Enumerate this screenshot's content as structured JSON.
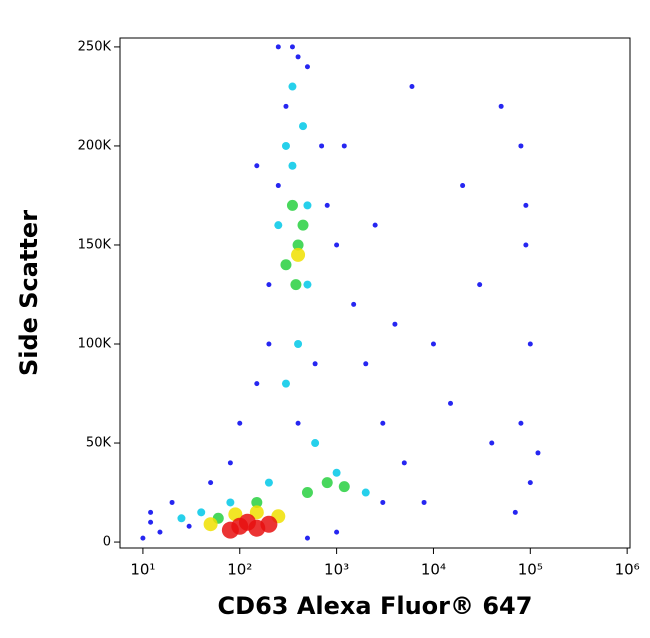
{
  "chart_data": {
    "type": "scatter",
    "x_label": "CD63 Alexa Fluor® 647",
    "y_label": "Side Scatter",
    "xlog": true,
    "xlim": [
      5.8,
      1070000
    ],
    "xticks": [
      {
        "value": 10,
        "label": "10¹"
      },
      {
        "value": 100,
        "label": "10²"
      },
      {
        "value": 1000,
        "label": "10³"
      },
      {
        "value": 10000,
        "label": "10⁴"
      },
      {
        "value": 100000,
        "label": "10⁵"
      },
      {
        "value": 1000000,
        "label": "10⁶"
      }
    ],
    "ylim": [
      -3000,
      254500
    ],
    "yticks": [
      0,
      {
        "value": 50000,
        "label": "50K"
      },
      {
        "value": 100000,
        "label": "100K"
      },
      {
        "value": 150000,
        "label": "150K"
      },
      {
        "value": 200000,
        "label": "200K"
      },
      {
        "value": 250000,
        "label": "250K"
      }
    ],
    "series": [
      {
        "color": "#0000ee",
        "x": [
          20,
          30,
          15,
          12,
          50,
          80,
          100,
          150,
          200,
          250,
          300,
          350,
          500,
          700,
          1000,
          1500,
          2000,
          3000,
          5000,
          8000,
          10000,
          20000,
          30000,
          50000,
          80000,
          90000,
          100000,
          80000,
          100000,
          70000,
          120000,
          90000,
          200,
          150,
          400,
          600,
          800,
          1200,
          2500,
          4000,
          6000,
          15000,
          40000,
          3000,
          1000,
          500,
          10,
          12,
          400,
          250
        ],
        "values": [
          20000,
          8000,
          5000,
          15000,
          30000,
          40000,
          60000,
          80000,
          100000,
          180000,
          220000,
          250000,
          240000,
          200000,
          150000,
          120000,
          90000,
          60000,
          40000,
          20000,
          100000,
          180000,
          130000,
          220000,
          200000,
          150000,
          100000,
          60000,
          30000,
          15000,
          45000,
          170000,
          130000,
          190000,
          60000,
          90000,
          170000,
          200000,
          160000,
          110000,
          230000,
          70000,
          50000,
          20000,
          5000,
          2000,
          2000,
          10000,
          245000,
          250000
        ]
      },
      {
        "color": "#00c8e8",
        "x": [
          300,
          350,
          450,
          250,
          500,
          400,
          300,
          600,
          1000,
          2000,
          200,
          80,
          40,
          25,
          500,
          350
        ],
        "values": [
          200000,
          190000,
          210000,
          160000,
          130000,
          100000,
          80000,
          50000,
          35000,
          25000,
          30000,
          20000,
          15000,
          12000,
          170000,
          230000
        ]
      },
      {
        "color": "#28d040",
        "x": [
          350,
          400,
          450,
          380,
          300,
          800,
          1200,
          500,
          150,
          60
        ],
        "values": [
          170000,
          150000,
          160000,
          130000,
          140000,
          30000,
          28000,
          25000,
          20000,
          12000
        ]
      },
      {
        "color": "#f0e000",
        "x": [
          400,
          150,
          90,
          250,
          50
        ],
        "values": [
          145000,
          15000,
          14000,
          13000,
          9000
        ]
      },
      {
        "color": "#e81010",
        "x": [
          100,
          150,
          120,
          200,
          80
        ],
        "values": [
          8000,
          7000,
          10000,
          9000,
          6000
        ]
      }
    ]
  }
}
